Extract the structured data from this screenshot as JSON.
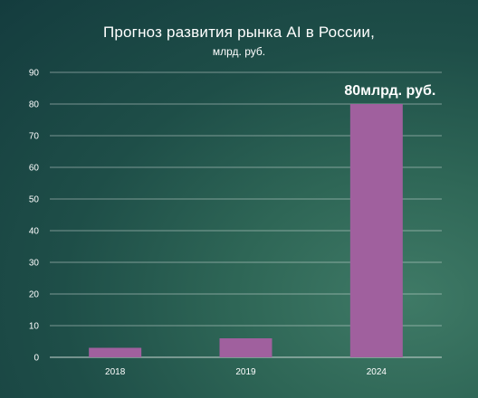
{
  "chart_data": {
    "type": "bar",
    "title": "Прогноз развития рынка AI в России,",
    "subtitle": "млрд. руб.",
    "categories": [
      "2018",
      "2019",
      "2024"
    ],
    "values": [
      3,
      6,
      80
    ],
    "ylim": [
      0,
      90
    ],
    "yticks": [
      "0",
      "10",
      "20",
      "30",
      "40",
      "50",
      "60",
      "70",
      "80",
      "90"
    ],
    "grid": true,
    "bar_color": "#a0609e",
    "annotation": {
      "category": "2024",
      "text": "80млрд. руб."
    }
  }
}
